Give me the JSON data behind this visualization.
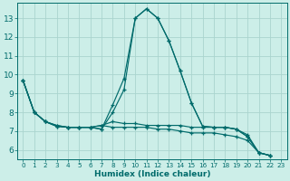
{
  "xlabel": "Humidex (Indice chaleur)",
  "background_color": "#cceee8",
  "grid_color": "#aad4ce",
  "line_color": "#006b6b",
  "xlim": [
    -0.5,
    23.5
  ],
  "ylim": [
    5.5,
    13.8
  ],
  "yticks": [
    6,
    7,
    8,
    9,
    10,
    11,
    12,
    13
  ],
  "xticks": [
    0,
    1,
    2,
    3,
    4,
    5,
    6,
    7,
    8,
    9,
    10,
    11,
    12,
    13,
    14,
    15,
    16,
    17,
    18,
    19,
    20,
    21,
    22,
    23
  ],
  "x_data": [
    0,
    1,
    2,
    3,
    4,
    5,
    6,
    7,
    8,
    9,
    10,
    11,
    12,
    13,
    14,
    15,
    16,
    17,
    18,
    19,
    20,
    21,
    22
  ],
  "series": [
    [
      9.7,
      8.0,
      7.5,
      7.25,
      7.2,
      7.2,
      7.2,
      7.1,
      8.4,
      9.8,
      13.0,
      13.5,
      13.0,
      11.8,
      10.2,
      8.5,
      7.25,
      7.2,
      7.2,
      7.1,
      6.7,
      5.85,
      5.7
    ],
    [
      9.7,
      8.0,
      7.5,
      7.25,
      7.2,
      7.2,
      7.2,
      7.1,
      8.0,
      9.2,
      13.0,
      13.5,
      13.0,
      11.8,
      10.2,
      8.5,
      7.25,
      7.2,
      7.2,
      7.1,
      6.7,
      5.85,
      5.7
    ],
    [
      9.7,
      8.0,
      7.5,
      7.3,
      7.2,
      7.2,
      7.2,
      7.3,
      7.5,
      7.4,
      7.4,
      7.3,
      7.3,
      7.3,
      7.3,
      7.2,
      7.2,
      7.2,
      7.2,
      7.1,
      6.8,
      5.85,
      5.7
    ],
    [
      9.7,
      8.0,
      7.5,
      7.3,
      7.2,
      7.2,
      7.2,
      7.3,
      7.2,
      7.2,
      7.2,
      7.2,
      7.1,
      7.1,
      7.0,
      6.9,
      6.9,
      6.9,
      6.8,
      6.7,
      6.5,
      5.85,
      5.7
    ]
  ],
  "xlabel_fontsize": 6.5,
  "tick_fontsize_x": 5.2,
  "tick_fontsize_y": 6.5
}
